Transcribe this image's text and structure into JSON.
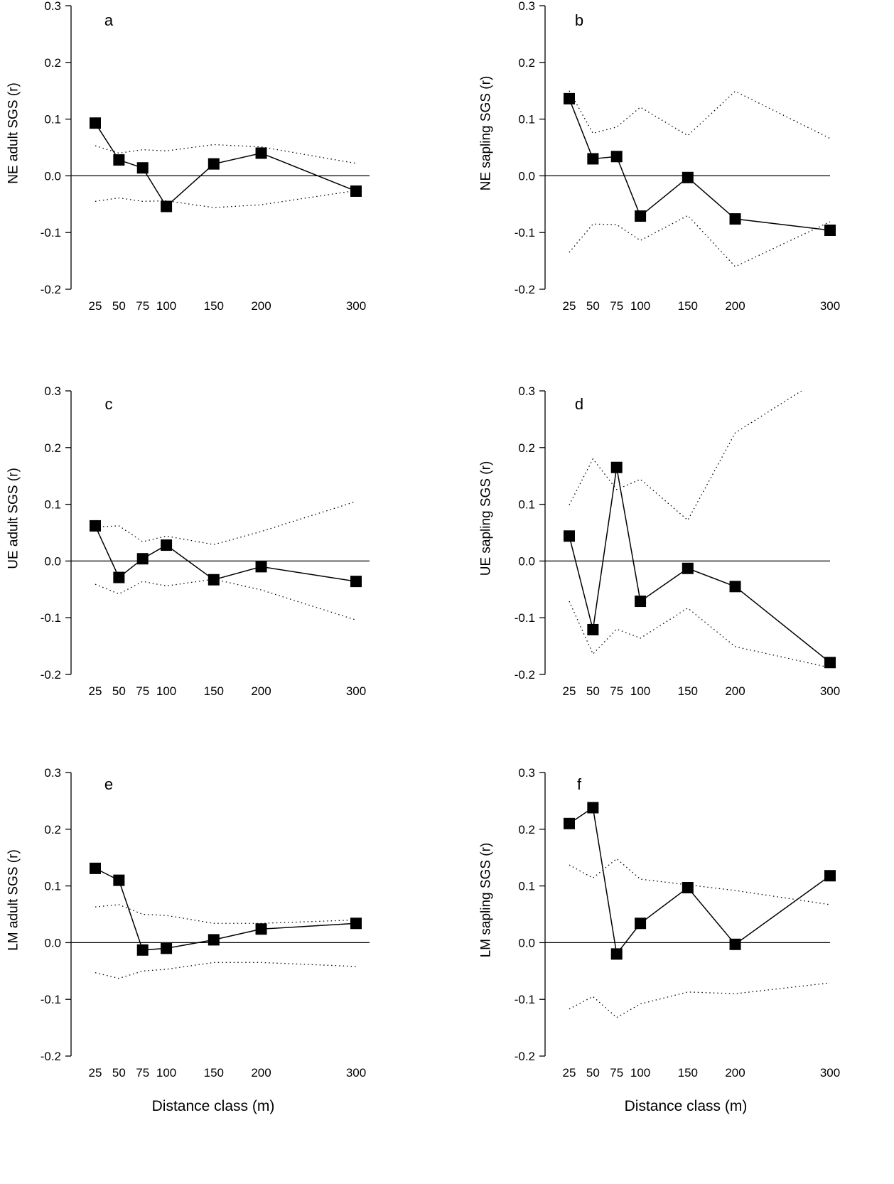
{
  "chart_data": [
    {
      "type": "line",
      "panel": "a",
      "ylabel": "NE adult SGS (r)",
      "xlabel": "",
      "x": [
        25,
        50,
        75,
        100,
        150,
        200,
        300
      ],
      "ylim": [
        -0.2,
        0.3
      ],
      "series": [
        {
          "name": "r",
          "values": [
            0.093,
            0.028,
            0.014,
            -0.054,
            0.021,
            0.04,
            -0.027
          ]
        },
        {
          "name": "upper 95% CI",
          "values": [
            0.053,
            0.04,
            0.046,
            0.044,
            0.055,
            0.051,
            0.022
          ]
        },
        {
          "name": "lower 95% CI",
          "values": [
            -0.045,
            -0.039,
            -0.045,
            -0.044,
            -0.056,
            -0.051,
            -0.026
          ]
        }
      ]
    },
    {
      "type": "line",
      "panel": "b",
      "ylabel": "NE sapling SGS (r)",
      "xlabel": "",
      "x": [
        25,
        50,
        75,
        100,
        150,
        200,
        300
      ],
      "ylim": [
        -0.2,
        0.3
      ],
      "series": [
        {
          "name": "r",
          "values": [
            0.136,
            0.03,
            0.034,
            -0.071,
            -0.003,
            -0.076,
            -0.096
          ]
        },
        {
          "name": "upper 95% CI",
          "values": [
            0.15,
            0.075,
            0.086,
            0.121,
            0.071,
            0.149,
            0.066
          ]
        },
        {
          "name": "lower 95% CI",
          "values": [
            -0.135,
            -0.085,
            -0.086,
            -0.114,
            -0.07,
            -0.16,
            -0.081
          ]
        }
      ]
    },
    {
      "type": "line",
      "panel": "c",
      "ylabel": "UE adult SGS (r)",
      "xlabel": "",
      "x": [
        25,
        50,
        75,
        100,
        150,
        200,
        300
      ],
      "ylim": [
        -0.2,
        0.3
      ],
      "series": [
        {
          "name": "r",
          "values": [
            0.062,
            -0.029,
            0.004,
            0.028,
            -0.033,
            -0.01,
            -0.036
          ]
        },
        {
          "name": "upper 95% CI",
          "values": [
            0.06,
            0.062,
            0.034,
            0.044,
            0.029,
            0.052,
            0.105
          ]
        },
        {
          "name": "lower 95% CI",
          "values": [
            -0.041,
            -0.058,
            -0.036,
            -0.044,
            -0.032,
            -0.051,
            -0.104
          ]
        }
      ]
    },
    {
      "type": "line",
      "panel": "d",
      "ylabel": "UE sapling SGS (r)",
      "xlabel": "",
      "x": [
        25,
        50,
        75,
        100,
        150,
        200,
        300
      ],
      "ylim": [
        -0.2,
        0.3
      ],
      "series": [
        {
          "name": "r",
          "values": [
            0.044,
            -0.121,
            0.165,
            -0.071,
            -0.013,
            -0.045,
            -0.179
          ]
        },
        {
          "name": "upper 95% CI",
          "values": [
            0.099,
            0.18,
            0.126,
            0.144,
            0.072,
            0.226,
            0.332
          ]
        },
        {
          "name": "lower 95% CI",
          "values": [
            -0.071,
            -0.164,
            -0.12,
            -0.136,
            -0.083,
            -0.151,
            -0.188
          ]
        }
      ]
    },
    {
      "type": "line",
      "panel": "e",
      "ylabel": "LM adult SGS (r)",
      "xlabel": "Distance class (m)",
      "x": [
        25,
        50,
        75,
        100,
        150,
        200,
        300
      ],
      "ylim": [
        -0.2,
        0.3
      ],
      "series": [
        {
          "name": "r",
          "values": [
            0.131,
            0.11,
            -0.013,
            -0.01,
            0.005,
            0.024,
            0.034
          ]
        },
        {
          "name": "upper 95% CI",
          "values": [
            0.063,
            0.067,
            0.05,
            0.048,
            0.034,
            0.034,
            0.04
          ]
        },
        {
          "name": "lower 95% CI",
          "values": [
            -0.053,
            -0.063,
            -0.05,
            -0.047,
            -0.035,
            -0.035,
            -0.042
          ]
        }
      ]
    },
    {
      "type": "line",
      "panel": "f",
      "ylabel": "LM sapling SGS (r)",
      "xlabel": "Distance class (m)",
      "x": [
        25,
        50,
        75,
        100,
        150,
        200,
        300
      ],
      "ylim": [
        -0.2,
        0.3
      ],
      "series": [
        {
          "name": "r",
          "values": [
            0.21,
            0.238,
            -0.02,
            0.034,
            0.097,
            -0.003,
            0.118
          ]
        },
        {
          "name": "upper 95% CI",
          "values": [
            0.137,
            0.114,
            0.148,
            0.112,
            0.102,
            0.092,
            0.067
          ]
        },
        {
          "name": "lower 95% CI",
          "values": [
            -0.117,
            -0.095,
            -0.132,
            -0.108,
            -0.087,
            -0.09,
            -0.071
          ]
        }
      ]
    }
  ],
  "yticks": [
    "0.3",
    "0.2",
    "0.1",
    "0.0",
    "-0.1",
    "-0.2"
  ],
  "ytick_values": [
    0.3,
    0.2,
    0.1,
    0.0,
    -0.1,
    -0.2
  ],
  "xticks": [
    "25",
    "50",
    "75",
    "100",
    "150",
    "200",
    "300"
  ]
}
